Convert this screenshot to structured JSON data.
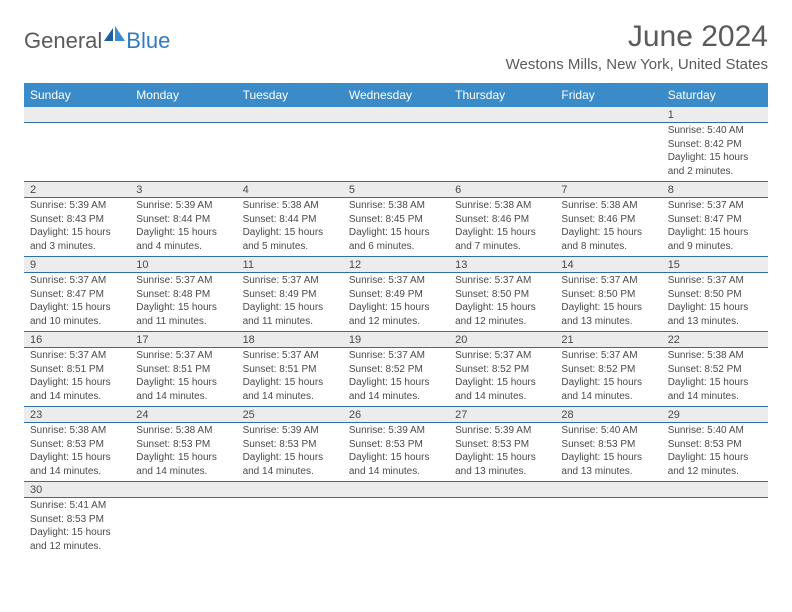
{
  "logo": {
    "part1": "General",
    "part2": "Blue"
  },
  "title": "June 2024",
  "location": "Westons Mills, New York, United States",
  "colors": {
    "header_bg": "#3b8bc8",
    "header_text": "#ffffff",
    "daynum_bg": "#ececec",
    "text": "#4a4a4a",
    "row_divider": "#2f6fa8",
    "logo_gray": "#5a5a5a",
    "logo_blue": "#2f7bbf"
  },
  "days_of_week": [
    "Sunday",
    "Monday",
    "Tuesday",
    "Wednesday",
    "Thursday",
    "Friday",
    "Saturday"
  ],
  "weeks": [
    [
      null,
      null,
      null,
      null,
      null,
      null,
      {
        "n": "1",
        "sr": "Sunrise: 5:40 AM",
        "ss": "Sunset: 8:42 PM",
        "dl": "Daylight: 15 hours and 2 minutes."
      }
    ],
    [
      {
        "n": "2",
        "sr": "Sunrise: 5:39 AM",
        "ss": "Sunset: 8:43 PM",
        "dl": "Daylight: 15 hours and 3 minutes."
      },
      {
        "n": "3",
        "sr": "Sunrise: 5:39 AM",
        "ss": "Sunset: 8:44 PM",
        "dl": "Daylight: 15 hours and 4 minutes."
      },
      {
        "n": "4",
        "sr": "Sunrise: 5:38 AM",
        "ss": "Sunset: 8:44 PM",
        "dl": "Daylight: 15 hours and 5 minutes."
      },
      {
        "n": "5",
        "sr": "Sunrise: 5:38 AM",
        "ss": "Sunset: 8:45 PM",
        "dl": "Daylight: 15 hours and 6 minutes."
      },
      {
        "n": "6",
        "sr": "Sunrise: 5:38 AM",
        "ss": "Sunset: 8:46 PM",
        "dl": "Daylight: 15 hours and 7 minutes."
      },
      {
        "n": "7",
        "sr": "Sunrise: 5:38 AM",
        "ss": "Sunset: 8:46 PM",
        "dl": "Daylight: 15 hours and 8 minutes."
      },
      {
        "n": "8",
        "sr": "Sunrise: 5:37 AM",
        "ss": "Sunset: 8:47 PM",
        "dl": "Daylight: 15 hours and 9 minutes."
      }
    ],
    [
      {
        "n": "9",
        "sr": "Sunrise: 5:37 AM",
        "ss": "Sunset: 8:47 PM",
        "dl": "Daylight: 15 hours and 10 minutes."
      },
      {
        "n": "10",
        "sr": "Sunrise: 5:37 AM",
        "ss": "Sunset: 8:48 PM",
        "dl": "Daylight: 15 hours and 11 minutes."
      },
      {
        "n": "11",
        "sr": "Sunrise: 5:37 AM",
        "ss": "Sunset: 8:49 PM",
        "dl": "Daylight: 15 hours and 11 minutes."
      },
      {
        "n": "12",
        "sr": "Sunrise: 5:37 AM",
        "ss": "Sunset: 8:49 PM",
        "dl": "Daylight: 15 hours and 12 minutes."
      },
      {
        "n": "13",
        "sr": "Sunrise: 5:37 AM",
        "ss": "Sunset: 8:50 PM",
        "dl": "Daylight: 15 hours and 12 minutes."
      },
      {
        "n": "14",
        "sr": "Sunrise: 5:37 AM",
        "ss": "Sunset: 8:50 PM",
        "dl": "Daylight: 15 hours and 13 minutes."
      },
      {
        "n": "15",
        "sr": "Sunrise: 5:37 AM",
        "ss": "Sunset: 8:50 PM",
        "dl": "Daylight: 15 hours and 13 minutes."
      }
    ],
    [
      {
        "n": "16",
        "sr": "Sunrise: 5:37 AM",
        "ss": "Sunset: 8:51 PM",
        "dl": "Daylight: 15 hours and 14 minutes."
      },
      {
        "n": "17",
        "sr": "Sunrise: 5:37 AM",
        "ss": "Sunset: 8:51 PM",
        "dl": "Daylight: 15 hours and 14 minutes."
      },
      {
        "n": "18",
        "sr": "Sunrise: 5:37 AM",
        "ss": "Sunset: 8:51 PM",
        "dl": "Daylight: 15 hours and 14 minutes."
      },
      {
        "n": "19",
        "sr": "Sunrise: 5:37 AM",
        "ss": "Sunset: 8:52 PM",
        "dl": "Daylight: 15 hours and 14 minutes."
      },
      {
        "n": "20",
        "sr": "Sunrise: 5:37 AM",
        "ss": "Sunset: 8:52 PM",
        "dl": "Daylight: 15 hours and 14 minutes."
      },
      {
        "n": "21",
        "sr": "Sunrise: 5:37 AM",
        "ss": "Sunset: 8:52 PM",
        "dl": "Daylight: 15 hours and 14 minutes."
      },
      {
        "n": "22",
        "sr": "Sunrise: 5:38 AM",
        "ss": "Sunset: 8:52 PM",
        "dl": "Daylight: 15 hours and 14 minutes."
      }
    ],
    [
      {
        "n": "23",
        "sr": "Sunrise: 5:38 AM",
        "ss": "Sunset: 8:53 PM",
        "dl": "Daylight: 15 hours and 14 minutes."
      },
      {
        "n": "24",
        "sr": "Sunrise: 5:38 AM",
        "ss": "Sunset: 8:53 PM",
        "dl": "Daylight: 15 hours and 14 minutes."
      },
      {
        "n": "25",
        "sr": "Sunrise: 5:39 AM",
        "ss": "Sunset: 8:53 PM",
        "dl": "Daylight: 15 hours and 14 minutes."
      },
      {
        "n": "26",
        "sr": "Sunrise: 5:39 AM",
        "ss": "Sunset: 8:53 PM",
        "dl": "Daylight: 15 hours and 14 minutes."
      },
      {
        "n": "27",
        "sr": "Sunrise: 5:39 AM",
        "ss": "Sunset: 8:53 PM",
        "dl": "Daylight: 15 hours and 13 minutes."
      },
      {
        "n": "28",
        "sr": "Sunrise: 5:40 AM",
        "ss": "Sunset: 8:53 PM",
        "dl": "Daylight: 15 hours and 13 minutes."
      },
      {
        "n": "29",
        "sr": "Sunrise: 5:40 AM",
        "ss": "Sunset: 8:53 PM",
        "dl": "Daylight: 15 hours and 12 minutes."
      }
    ],
    [
      {
        "n": "30",
        "sr": "Sunrise: 5:41 AM",
        "ss": "Sunset: 8:53 PM",
        "dl": "Daylight: 15 hours and 12 minutes."
      },
      null,
      null,
      null,
      null,
      null,
      null
    ]
  ]
}
